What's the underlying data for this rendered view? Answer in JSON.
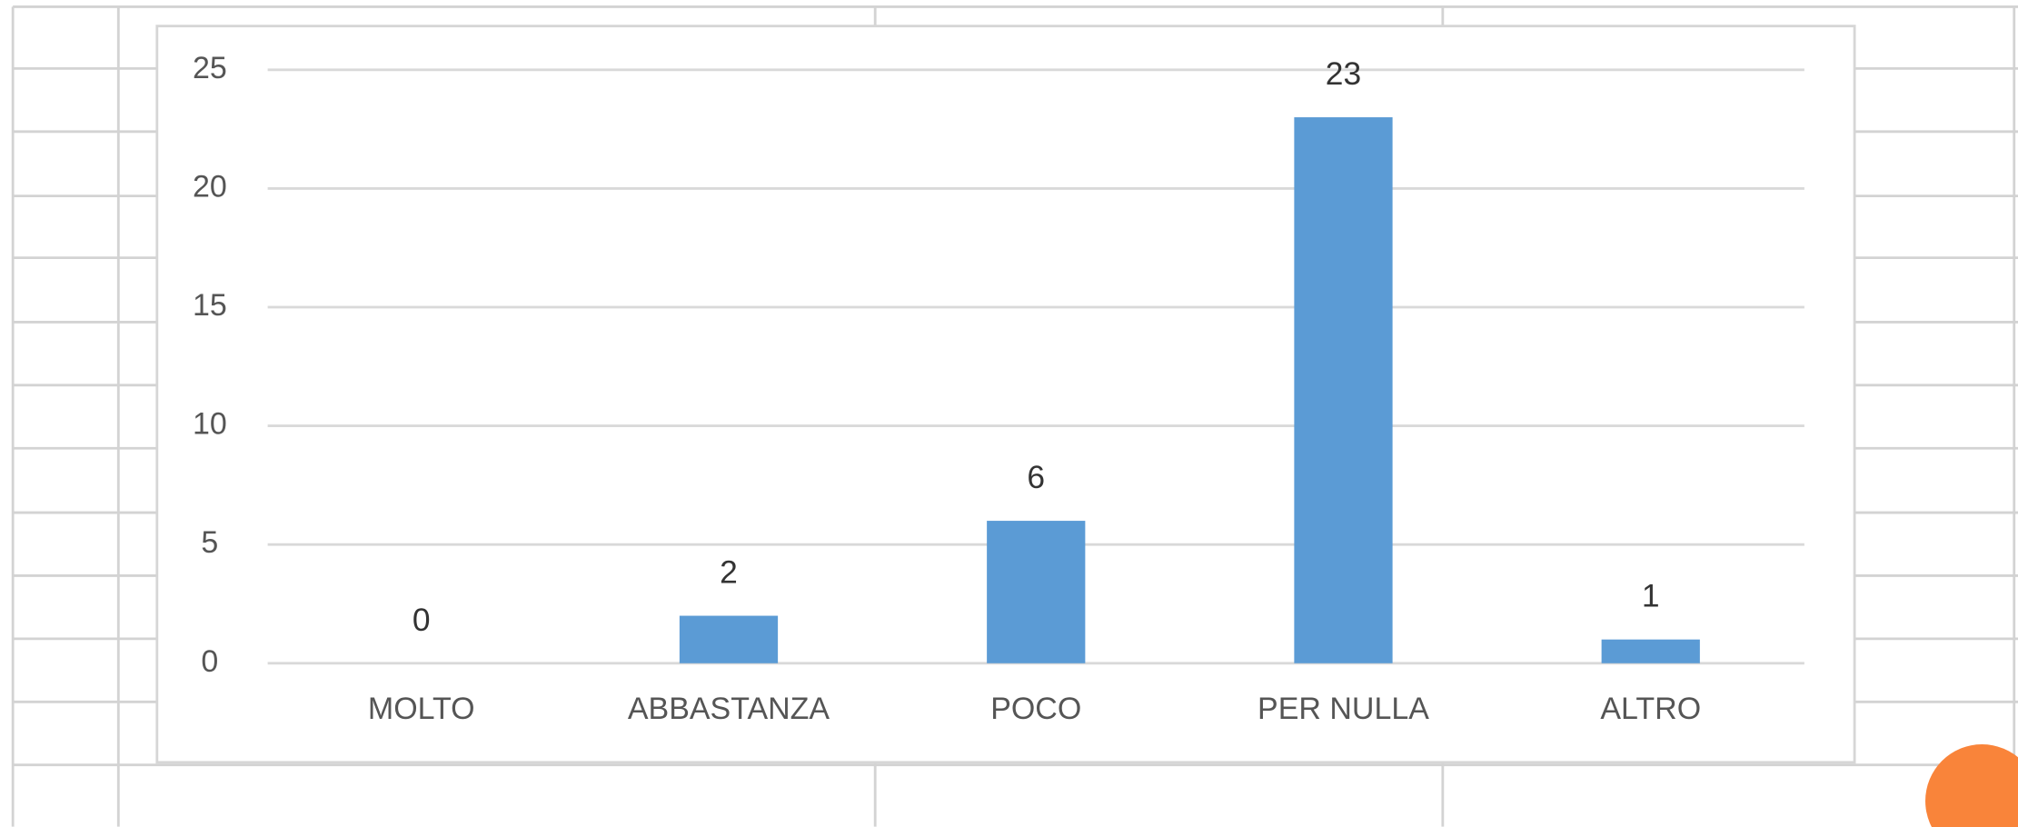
{
  "chart_data": {
    "type": "bar",
    "categories": [
      "MOLTO",
      "ABBASTANZA",
      "POCO",
      "PER NULLA",
      "ALTRO"
    ],
    "values": [
      0,
      2,
      6,
      23,
      1
    ],
    "color": "#5b9bd5",
    "ylim": [
      0,
      25
    ],
    "yticks": [
      0,
      5,
      10,
      15,
      20,
      25
    ],
    "grid": true
  }
}
